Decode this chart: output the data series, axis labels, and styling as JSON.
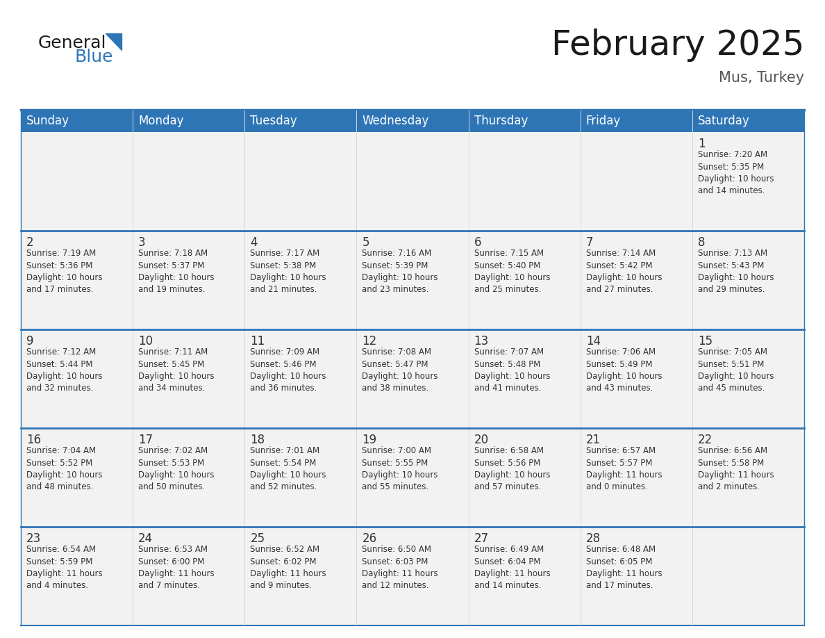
{
  "title": "February 2025",
  "subtitle": "Mus, Turkey",
  "header_bg_color": "#2E75B6",
  "header_text_color": "#FFFFFF",
  "cell_bg_color": "#F2F2F2",
  "border_color": "#2E75B6",
  "day_number_color": "#333333",
  "cell_text_color": "#333333",
  "days_of_week": [
    "Sunday",
    "Monday",
    "Tuesday",
    "Wednesday",
    "Thursday",
    "Friday",
    "Saturday"
  ],
  "weeks": [
    [
      {
        "day": "",
        "info": ""
      },
      {
        "day": "",
        "info": ""
      },
      {
        "day": "",
        "info": ""
      },
      {
        "day": "",
        "info": ""
      },
      {
        "day": "",
        "info": ""
      },
      {
        "day": "",
        "info": ""
      },
      {
        "day": "1",
        "info": "Sunrise: 7:20 AM\nSunset: 5:35 PM\nDaylight: 10 hours\nand 14 minutes."
      }
    ],
    [
      {
        "day": "2",
        "info": "Sunrise: 7:19 AM\nSunset: 5:36 PM\nDaylight: 10 hours\nand 17 minutes."
      },
      {
        "day": "3",
        "info": "Sunrise: 7:18 AM\nSunset: 5:37 PM\nDaylight: 10 hours\nand 19 minutes."
      },
      {
        "day": "4",
        "info": "Sunrise: 7:17 AM\nSunset: 5:38 PM\nDaylight: 10 hours\nand 21 minutes."
      },
      {
        "day": "5",
        "info": "Sunrise: 7:16 AM\nSunset: 5:39 PM\nDaylight: 10 hours\nand 23 minutes."
      },
      {
        "day": "6",
        "info": "Sunrise: 7:15 AM\nSunset: 5:40 PM\nDaylight: 10 hours\nand 25 minutes."
      },
      {
        "day": "7",
        "info": "Sunrise: 7:14 AM\nSunset: 5:42 PM\nDaylight: 10 hours\nand 27 minutes."
      },
      {
        "day": "8",
        "info": "Sunrise: 7:13 AM\nSunset: 5:43 PM\nDaylight: 10 hours\nand 29 minutes."
      }
    ],
    [
      {
        "day": "9",
        "info": "Sunrise: 7:12 AM\nSunset: 5:44 PM\nDaylight: 10 hours\nand 32 minutes."
      },
      {
        "day": "10",
        "info": "Sunrise: 7:11 AM\nSunset: 5:45 PM\nDaylight: 10 hours\nand 34 minutes."
      },
      {
        "day": "11",
        "info": "Sunrise: 7:09 AM\nSunset: 5:46 PM\nDaylight: 10 hours\nand 36 minutes."
      },
      {
        "day": "12",
        "info": "Sunrise: 7:08 AM\nSunset: 5:47 PM\nDaylight: 10 hours\nand 38 minutes."
      },
      {
        "day": "13",
        "info": "Sunrise: 7:07 AM\nSunset: 5:48 PM\nDaylight: 10 hours\nand 41 minutes."
      },
      {
        "day": "14",
        "info": "Sunrise: 7:06 AM\nSunset: 5:49 PM\nDaylight: 10 hours\nand 43 minutes."
      },
      {
        "day": "15",
        "info": "Sunrise: 7:05 AM\nSunset: 5:51 PM\nDaylight: 10 hours\nand 45 minutes."
      }
    ],
    [
      {
        "day": "16",
        "info": "Sunrise: 7:04 AM\nSunset: 5:52 PM\nDaylight: 10 hours\nand 48 minutes."
      },
      {
        "day": "17",
        "info": "Sunrise: 7:02 AM\nSunset: 5:53 PM\nDaylight: 10 hours\nand 50 minutes."
      },
      {
        "day": "18",
        "info": "Sunrise: 7:01 AM\nSunset: 5:54 PM\nDaylight: 10 hours\nand 52 minutes."
      },
      {
        "day": "19",
        "info": "Sunrise: 7:00 AM\nSunset: 5:55 PM\nDaylight: 10 hours\nand 55 minutes."
      },
      {
        "day": "20",
        "info": "Sunrise: 6:58 AM\nSunset: 5:56 PM\nDaylight: 10 hours\nand 57 minutes."
      },
      {
        "day": "21",
        "info": "Sunrise: 6:57 AM\nSunset: 5:57 PM\nDaylight: 11 hours\nand 0 minutes."
      },
      {
        "day": "22",
        "info": "Sunrise: 6:56 AM\nSunset: 5:58 PM\nDaylight: 11 hours\nand 2 minutes."
      }
    ],
    [
      {
        "day": "23",
        "info": "Sunrise: 6:54 AM\nSunset: 5:59 PM\nDaylight: 11 hours\nand 4 minutes."
      },
      {
        "day": "24",
        "info": "Sunrise: 6:53 AM\nSunset: 6:00 PM\nDaylight: 11 hours\nand 7 minutes."
      },
      {
        "day": "25",
        "info": "Sunrise: 6:52 AM\nSunset: 6:02 PM\nDaylight: 11 hours\nand 9 minutes."
      },
      {
        "day": "26",
        "info": "Sunrise: 6:50 AM\nSunset: 6:03 PM\nDaylight: 11 hours\nand 12 minutes."
      },
      {
        "day": "27",
        "info": "Sunrise: 6:49 AM\nSunset: 6:04 PM\nDaylight: 11 hours\nand 14 minutes."
      },
      {
        "day": "28",
        "info": "Sunrise: 6:48 AM\nSunset: 6:05 PM\nDaylight: 11 hours\nand 17 minutes."
      },
      {
        "day": "",
        "info": ""
      }
    ]
  ],
  "logo_general_color": "#1a1a1a",
  "logo_blue_color": "#2E75B6",
  "title_fontsize": 36,
  "subtitle_fontsize": 15,
  "header_fontsize": 12,
  "day_number_fontsize": 12,
  "cell_text_fontsize": 8.5
}
